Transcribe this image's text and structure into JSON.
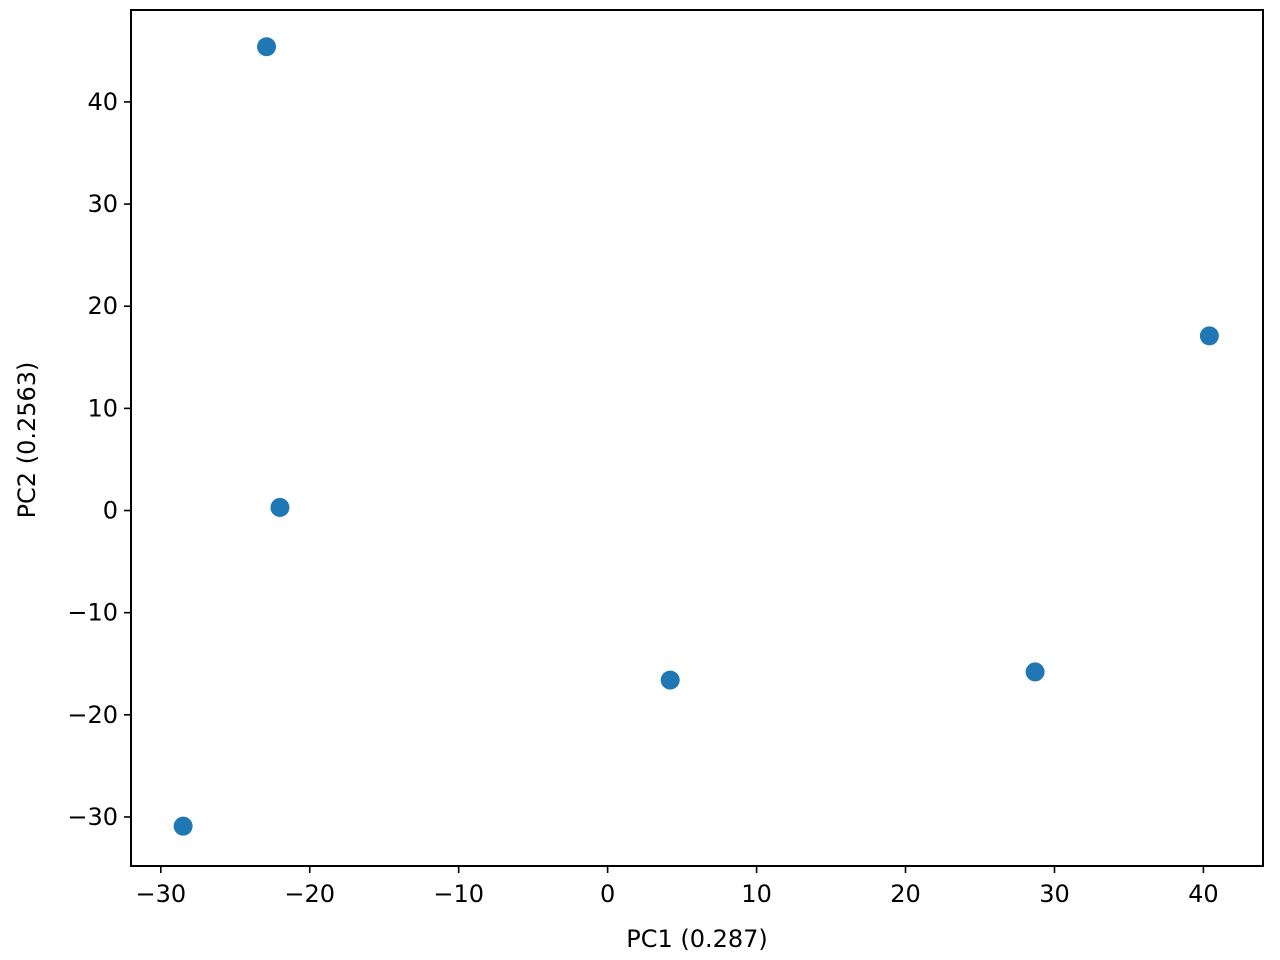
{
  "chart_data": {
    "type": "scatter",
    "title": "",
    "xlabel": "PC1 (0.287)",
    "ylabel": "PC2 (0.2563)",
    "xlim": [
      -32,
      44
    ],
    "ylim": [
      -34.8,
      49.0
    ],
    "xticks": [
      -30,
      -20,
      -10,
      0,
      10,
      20,
      30,
      40
    ],
    "xtick_labels": [
      "−30",
      "−20",
      "−10",
      "0",
      "10",
      "20",
      "30",
      "40"
    ],
    "yticks": [
      -30,
      -20,
      -10,
      0,
      10,
      20,
      30,
      40
    ],
    "ytick_labels": [
      "−30",
      "−20",
      "−10",
      "0",
      "10",
      "20",
      "30",
      "40"
    ],
    "grid": false,
    "legend": "none",
    "color": "#1f77b4",
    "points": [
      {
        "x": -22.9,
        "y": 45.4
      },
      {
        "x": -22.0,
        "y": 0.3
      },
      {
        "x": -28.5,
        "y": -30.9
      },
      {
        "x": 4.2,
        "y": -16.6
      },
      {
        "x": 28.7,
        "y": -15.8
      },
      {
        "x": 40.4,
        "y": 17.1
      }
    ]
  }
}
